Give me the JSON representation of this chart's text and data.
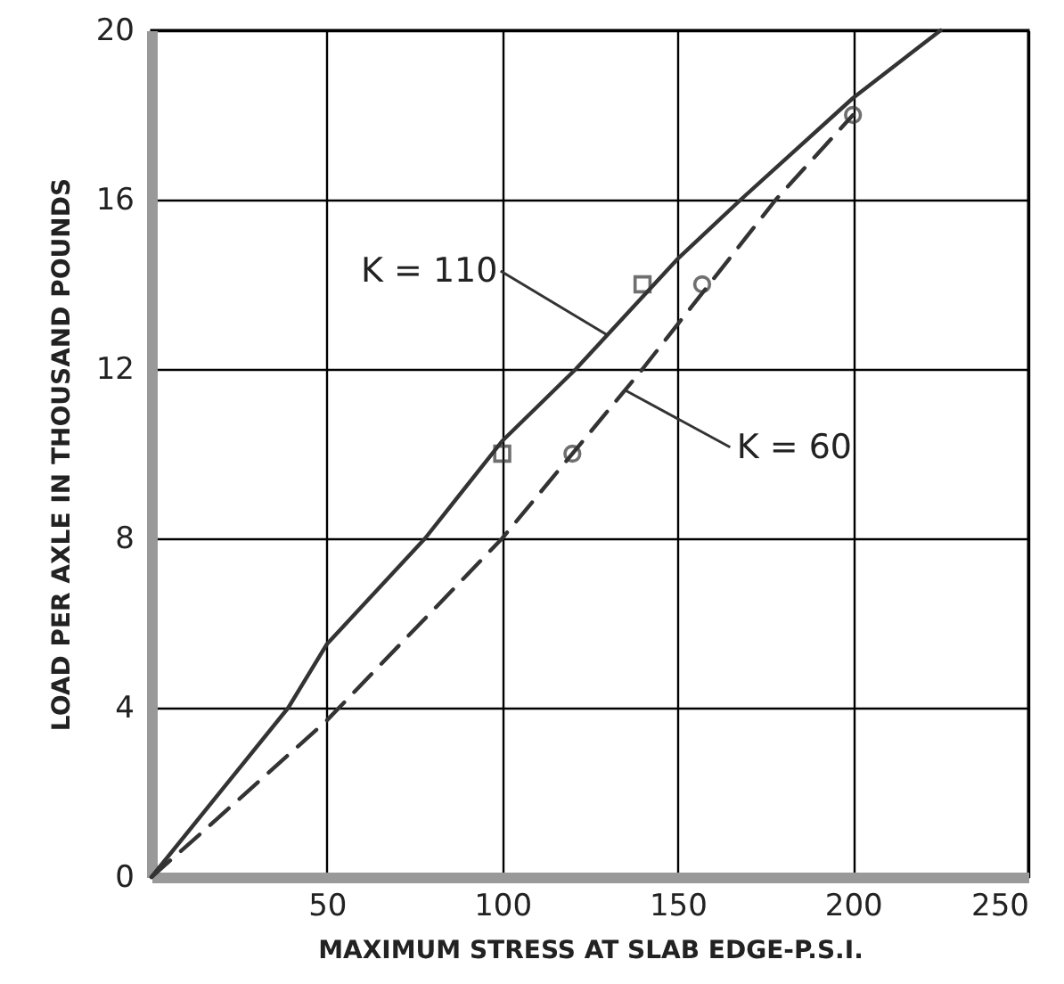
{
  "chart_data": {
    "type": "line",
    "xlabel": "MAXIMUM STRESS AT SLAB EDGE-P.S.I.",
    "ylabel": "LOAD PER AXLE IN THOUSAND POUNDS",
    "xlim": [
      0,
      250
    ],
    "ylim": [
      0,
      20
    ],
    "xticks": [
      {
        "value": 0,
        "label": null
      },
      50,
      100,
      150,
      200,
      250
    ],
    "yticks": [
      0,
      4,
      8,
      12,
      16,
      20
    ],
    "grid": true,
    "series": [
      {
        "color": "#333333",
        "line_style": "solid",
        "marker": "none",
        "x": [
          0,
          39,
          50,
          78,
          100,
          121,
          150,
          168,
          200,
          225
        ],
        "values": [
          0,
          4,
          5.5,
          8,
          10.3,
          12,
          14.6,
          16,
          18.4,
          20
        ]
      },
      {
        "color": "#333333",
        "line_style": "dashed",
        "marker": "none",
        "x": [
          0,
          15,
          50,
          100,
          140,
          178,
          200
        ],
        "values": [
          0,
          1.1,
          3.7,
          8,
          12,
          16,
          18
        ]
      },
      {
        "type": "scatter",
        "color": "#333333",
        "marker": "square",
        "x": [
          100,
          140
        ],
        "values": [
          10,
          14
        ]
      },
      {
        "type": "scatter",
        "color": "#333333",
        "marker": "circle",
        "x": [
          120,
          157,
          200
        ],
        "values": [
          10,
          14,
          18
        ]
      }
    ],
    "annotations": [
      {
        "text": "K = 110",
        "x": 130,
        "y": 12.8
      },
      {
        "text": "K = 60",
        "x": 135,
        "y": 11.5
      }
    ]
  }
}
